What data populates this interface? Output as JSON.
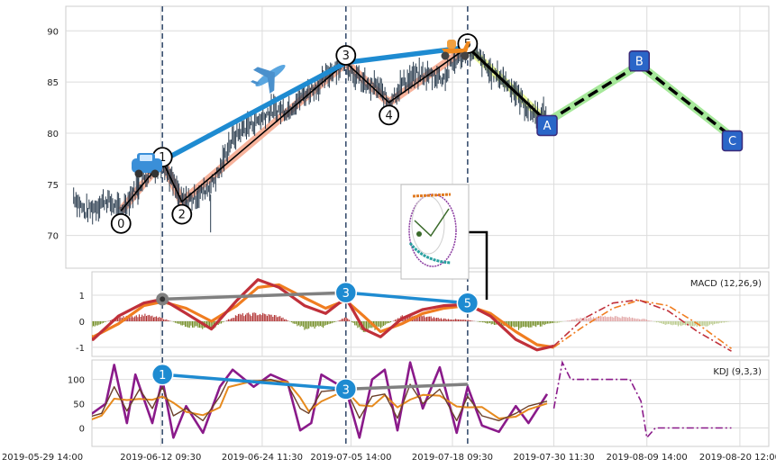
{
  "chart_data": {
    "type": "line",
    "x_tick_labels": [
      "2019-05-29 14:00",
      "2019-06-12 09:30",
      "2019-06-24 11:30",
      "2019-07-05 14:00",
      "2019-07-18 09:30",
      "2019-07-30 11:30",
      "2019-08-09 14:00",
      "2019-08-20 12:00"
    ],
    "x_range_days": [
      0,
      84
    ],
    "price_panel": {
      "ylim": [
        66.8,
        92.4
      ],
      "yticks": [
        70,
        75,
        80,
        85,
        90
      ],
      "impulse_wave": [
        {
          "label": "0",
          "x": 9.3,
          "y": 72.4
        },
        {
          "label": "1",
          "x": 14.2,
          "y": 77.3
        },
        {
          "label": "2",
          "x": 16.5,
          "y": 73.3
        },
        {
          "label": "3",
          "x": 35.9,
          "y": 86.9
        },
        {
          "label": "4",
          "x": 41.0,
          "y": 83.0
        },
        {
          "label": "5",
          "x": 50.3,
          "y": 88.4
        }
      ],
      "correction_wave": [
        {
          "label": "A",
          "x": 59.7,
          "y": 81.1
        },
        {
          "label": "B",
          "x": 70.6,
          "y": 86.7
        },
        {
          "label": "C",
          "x": 81.6,
          "y": 79.6
        }
      ],
      "trend_1_3_5": [
        {
          "x": 14.2,
          "y": 77.3
        },
        {
          "x": 35.9,
          "y": 86.9
        },
        {
          "x": 50.3,
          "y": 88.4
        }
      ],
      "vlines_days": [
        14.2,
        35.9,
        50.3
      ],
      "price_anchors": [
        [
          3.7,
          73.9
        ],
        [
          5.0,
          72.3
        ],
        [
          6.3,
          72.8
        ],
        [
          7.5,
          73.5
        ],
        [
          9.3,
          72.4
        ],
        [
          11.0,
          74.5
        ],
        [
          12.5,
          76.0
        ],
        [
          14.2,
          77.3
        ],
        [
          15.4,
          75.2
        ],
        [
          16.5,
          73.3
        ],
        [
          17.8,
          73.6
        ],
        [
          19.0,
          74.3
        ],
        [
          20.0,
          75.0
        ],
        [
          21.0,
          76.4
        ],
        [
          22.0,
          78.8
        ],
        [
          23.0,
          79.9
        ],
        [
          24.0,
          80.6
        ],
        [
          26.0,
          81.5
        ],
        [
          27.0,
          82.2
        ],
        [
          29.0,
          82.3
        ],
        [
          31.0,
          83.8
        ],
        [
          33.0,
          84.9
        ],
        [
          34.5,
          86.4
        ],
        [
          35.9,
          86.9
        ],
        [
          37.0,
          85.6
        ],
        [
          38.5,
          84.5
        ],
        [
          39.5,
          84.6
        ],
        [
          41.0,
          83.0
        ],
        [
          42.5,
          84.8
        ],
        [
          44.0,
          85.6
        ],
        [
          46.0,
          85.7
        ],
        [
          47.5,
          85.4
        ],
        [
          49.0,
          87.3
        ],
        [
          50.3,
          88.4
        ],
        [
          51.5,
          87.5
        ],
        [
          53.0,
          85.9
        ],
        [
          54.5,
          85.3
        ],
        [
          56.0,
          84.0
        ],
        [
          57.5,
          82.2
        ],
        [
          58.5,
          81.8
        ],
        [
          59.7,
          82.0
        ]
      ]
    },
    "macd_panel": {
      "label": "MACD (12,26,9)",
      "ylim": [
        -1.35,
        1.9
      ],
      "yticks": [
        -1,
        0,
        1
      ],
      "macd_line": [
        [
          3.3,
          -0.4
        ],
        [
          6.0,
          -0.7
        ],
        [
          9.0,
          0.2
        ],
        [
          12.0,
          0.7
        ],
        [
          14.2,
          0.85
        ],
        [
          17.0,
          0.3
        ],
        [
          20.0,
          -0.3
        ],
        [
          23.0,
          0.8
        ],
        [
          25.5,
          1.6
        ],
        [
          28.0,
          1.3
        ],
        [
          31.0,
          0.6
        ],
        [
          33.5,
          0.3
        ],
        [
          35.9,
          0.9
        ],
        [
          38.0,
          -0.3
        ],
        [
          40.0,
          -0.6
        ],
        [
          42.5,
          0.1
        ],
        [
          45.0,
          0.45
        ],
        [
          47.5,
          0.6
        ],
        [
          50.3,
          0.65
        ],
        [
          53.0,
          0.2
        ],
        [
          56.0,
          -0.7
        ],
        [
          58.5,
          -1.1
        ],
        [
          60.5,
          -0.95
        ]
      ],
      "signal_line": [
        [
          3.3,
          -0.2
        ],
        [
          6.0,
          -0.6
        ],
        [
          9.0,
          -0.1
        ],
        [
          12.0,
          0.6
        ],
        [
          14.2,
          0.75
        ],
        [
          17.0,
          0.5
        ],
        [
          20.0,
          0.0
        ],
        [
          23.0,
          0.6
        ],
        [
          25.5,
          1.3
        ],
        [
          28.0,
          1.4
        ],
        [
          31.0,
          0.9
        ],
        [
          33.5,
          0.5
        ],
        [
          35.9,
          0.8
        ],
        [
          38.0,
          0.2
        ],
        [
          40.0,
          -0.4
        ],
        [
          42.5,
          -0.1
        ],
        [
          45.0,
          0.3
        ],
        [
          47.5,
          0.5
        ],
        [
          50.3,
          0.6
        ],
        [
          53.0,
          0.3
        ],
        [
          56.0,
          -0.4
        ],
        [
          58.5,
          -0.9
        ],
        [
          60.5,
          -1.0
        ]
      ],
      "forecast_macd": [
        [
          60.5,
          -0.95
        ],
        [
          64.0,
          0.1
        ],
        [
          67.5,
          0.7
        ],
        [
          70.5,
          0.82
        ],
        [
          74.0,
          0.4
        ],
        [
          77.5,
          -0.4
        ],
        [
          81.5,
          -1.15
        ]
      ],
      "forecast_signal": [
        [
          60.5,
          -1.0
        ],
        [
          64.0,
          -0.2
        ],
        [
          67.5,
          0.5
        ],
        [
          70.5,
          0.8
        ],
        [
          74.0,
          0.6
        ],
        [
          77.5,
          -0.1
        ],
        [
          81.5,
          -1.05
        ]
      ],
      "histogram_anchors": [
        [
          3.3,
          -0.25
        ],
        [
          6.0,
          -0.2
        ],
        [
          9.0,
          0.15
        ],
        [
          12.0,
          0.25
        ],
        [
          14.2,
          0.12
        ],
        [
          17.0,
          -0.2
        ],
        [
          20.0,
          -0.3
        ],
        [
          23.0,
          0.25
        ],
        [
          25.5,
          0.3
        ],
        [
          28.0,
          0.2
        ],
        [
          31.0,
          -0.3
        ],
        [
          33.5,
          -0.2
        ],
        [
          35.9,
          0.15
        ],
        [
          38.0,
          -0.4
        ],
        [
          40.0,
          -0.25
        ],
        [
          42.5,
          0.2
        ],
        [
          45.0,
          0.2
        ],
        [
          47.5,
          0.1
        ],
        [
          50.3,
          0.05
        ],
        [
          53.0,
          -0.1
        ],
        [
          56.0,
          -0.3
        ],
        [
          58.5,
          -0.2
        ],
        [
          61.0,
          -0.05
        ],
        [
          64.0,
          0.15
        ],
        [
          67.5,
          0.2
        ],
        [
          71.0,
          0.1
        ],
        [
          74.0,
          -0.15
        ],
        [
          78.0,
          -0.2
        ],
        [
          81.5,
          0.0
        ]
      ],
      "wave_markers": [
        {
          "label": "",
          "x": 14.2,
          "y": 0.85
        },
        {
          "label": "3",
          "x": 35.9,
          "y": 1.1
        },
        {
          "label": "5",
          "x": 50.3,
          "y": 0.7
        }
      ]
    },
    "kdj_panel": {
      "label": "KDJ (9,3,3)",
      "ylim": [
        -38,
        140
      ],
      "yticks": [
        0,
        50,
        100
      ],
      "k_anchors": [
        [
          3.3,
          2
        ],
        [
          5.0,
          20
        ],
        [
          7.0,
          30
        ],
        [
          8.5,
          85
        ],
        [
          10.0,
          35
        ],
        [
          11.5,
          80
        ],
        [
          13.0,
          40
        ],
        [
          14.2,
          85
        ],
        [
          15.5,
          25
        ],
        [
          17.0,
          40
        ],
        [
          19.0,
          15
        ],
        [
          21.0,
          65
        ],
        [
          22.0,
          100
        ],
        [
          25.0,
          95
        ],
        [
          27.0,
          100
        ],
        [
          29.0,
          90
        ],
        [
          30.5,
          40
        ],
        [
          31.5,
          30
        ],
        [
          33.0,
          75
        ],
        [
          35.9,
          80
        ],
        [
          37.5,
          20
        ],
        [
          39.0,
          65
        ],
        [
          40.5,
          70
        ],
        [
          42.0,
          20
        ],
        [
          43.5,
          90
        ],
        [
          45.0,
          50
        ],
        [
          47.0,
          80
        ],
        [
          49.0,
          15
        ],
        [
          50.3,
          65
        ],
        [
          52.0,
          25
        ],
        [
          54.0,
          15
        ],
        [
          56.0,
          30
        ],
        [
          57.5,
          45
        ],
        [
          59.7,
          55
        ]
      ],
      "j_anchors": [
        [
          3.3,
          8
        ],
        [
          5.5,
          25
        ],
        [
          7.5,
          50
        ],
        [
          8.5,
          130
        ],
        [
          10.0,
          10
        ],
        [
          11.0,
          110
        ],
        [
          13.0,
          10
        ],
        [
          14.2,
          100
        ],
        [
          15.5,
          -20
        ],
        [
          17.0,
          45
        ],
        [
          19.0,
          -10
        ],
        [
          21.0,
          85
        ],
        [
          22.5,
          120
        ],
        [
          25.0,
          85
        ],
        [
          27.0,
          110
        ],
        [
          29.0,
          95
        ],
        [
          30.5,
          -5
        ],
        [
          31.8,
          10
        ],
        [
          33.0,
          110
        ],
        [
          35.9,
          80
        ],
        [
          37.5,
          -20
        ],
        [
          39.0,
          100
        ],
        [
          40.5,
          120
        ],
        [
          42.0,
          -5
        ],
        [
          43.5,
          135
        ],
        [
          45.0,
          40
        ],
        [
          47.0,
          125
        ],
        [
          49.0,
          -10
        ],
        [
          50.3,
          85
        ],
        [
          52.0,
          5
        ],
        [
          54.0,
          -8
        ],
        [
          56.0,
          45
        ],
        [
          57.5,
          10
        ],
        [
          59.7,
          70
        ]
      ],
      "forecast_j": [
        [
          60.5,
          40
        ],
        [
          61.5,
          135
        ],
        [
          62.5,
          100
        ],
        [
          67.0,
          100
        ],
        [
          69.5,
          100
        ],
        [
          70.8,
          55
        ],
        [
          71.5,
          -20
        ],
        [
          72.5,
          0
        ],
        [
          76.0,
          0
        ],
        [
          81.5,
          0
        ]
      ],
      "wave_markers": [
        {
          "label": "1",
          "x": 14.2,
          "y": 110
        },
        {
          "label": "3",
          "x": 35.9,
          "y": 80
        },
        {
          "label": "",
          "x": 50.3,
          "y": 90
        }
      ]
    },
    "colors": {
      "price_bar": "#2c3e50",
      "impulse_band": "#f4a58a",
      "wave_line": "#000000",
      "trend_line": "#1e8bd1",
      "correction_band": "#a6e89a",
      "correction_band_first": "#e8f59a",
      "label_box": "#2a66c8",
      "macd_line": "#c0303a",
      "signal_line": "#f07d20",
      "hist_pos": "#b03030",
      "hist_neg": "#6f8a20",
      "forecast_hist_pos": "#e2a6a6",
      "forecast_hist_neg": "#b8c98a",
      "kdj_k": "#6b3f2a",
      "kdj_d": "#e68a1e",
      "kdj_j": "#8a1a8a",
      "marker_blue": "#1e8bd1",
      "marker_grey": "#808080",
      "vline": "#3a5070",
      "grid": "#dcdcdc"
    },
    "decor": [
      "car-emoji",
      "airplane-emoji",
      "scooter-emoji",
      "inset-sketch-image"
    ]
  },
  "emoji": {
    "car": "🚙",
    "plane": "✈",
    "scooter": "🛵"
  }
}
